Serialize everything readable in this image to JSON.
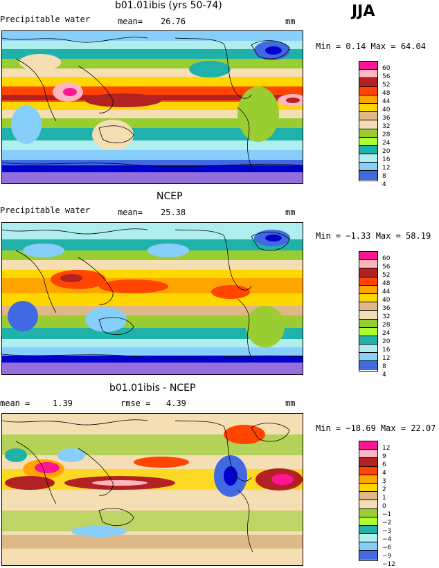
{
  "season": "JJA",
  "panels": [
    {
      "title": "b01.01ibis (yrs 50-74)",
      "left_label": "Precipitable water",
      "stat1_label": "mean=",
      "stat1_value": "26.76",
      "stat2_label": "",
      "stat2_value": "",
      "units": "mm",
      "minmax": "Min =   0.14 Max =  64.04",
      "legend_labels": [
        "60",
        "56",
        "52",
        "48",
        "44",
        "40",
        "36",
        "32",
        "28",
        "24",
        "20",
        "16",
        "12",
        "8",
        "4"
      ],
      "legend_colors": [
        "#ff1493",
        "#ffb6c1",
        "#b22222",
        "#ff4500",
        "#ffa500",
        "#ffd700",
        "#deb887",
        "#f5deb3",
        "#9acd32",
        "#adff2f",
        "#20b2aa",
        "#afeeee",
        "#87cefa",
        "#4169e1",
        "#0000cd",
        "#9370db"
      ]
    },
    {
      "title": "NCEP",
      "left_label": "Precipitable water",
      "stat1_label": "mean=",
      "stat1_value": "25.38",
      "stat2_label": "",
      "stat2_value": "",
      "units": "mm",
      "minmax": "Min =  −1.33 Max =  58.19",
      "legend_labels": [
        "60",
        "56",
        "52",
        "48",
        "44",
        "40",
        "36",
        "32",
        "28",
        "24",
        "20",
        "16",
        "12",
        "8",
        "4"
      ],
      "legend_colors": [
        "#ff1493",
        "#ffb6c1",
        "#b22222",
        "#ff4500",
        "#ffa500",
        "#ffd700",
        "#deb887",
        "#f5deb3",
        "#9acd32",
        "#adff2f",
        "#20b2aa",
        "#afeeee",
        "#87cefa",
        "#4169e1",
        "#0000cd",
        "#9370db"
      ]
    },
    {
      "title": "b01.01ibis - NCEP",
      "left_label": "mean =",
      "stat1_label": "",
      "stat1_value": "1.39",
      "stat2_label": "rmse =",
      "stat2_value": "4.39",
      "units": "mm",
      "minmax": "Min = −18.69 Max =  22.07",
      "legend_labels": [
        "12",
        "9",
        "6",
        "4",
        "3",
        "2",
        "1",
        "0",
        "−1",
        "−2",
        "−3",
        "−4",
        "−6",
        "−9",
        "−12"
      ],
      "legend_colors": [
        "#ff1493",
        "#ffb6c1",
        "#b22222",
        "#ff4500",
        "#ffa500",
        "#ffd700",
        "#deb887",
        "#f5deb3",
        "#9acd32",
        "#adff2f",
        "#20b2aa",
        "#afeeee",
        "#87cefa",
        "#4169e1",
        "#0000cd",
        "#9370db"
      ]
    }
  ]
}
